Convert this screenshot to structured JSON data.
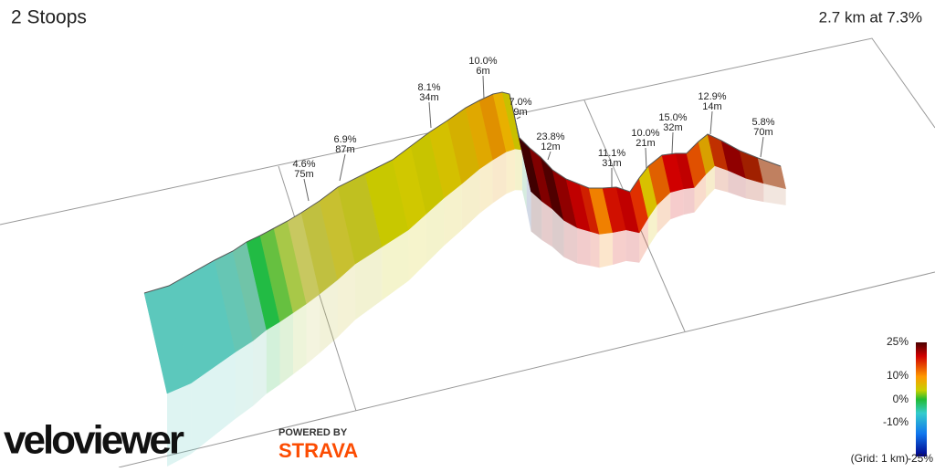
{
  "header": {
    "title": "2 Stoops",
    "summary": "2.7 km at 7.3%"
  },
  "annotations": [
    {
      "grade": "4.6%",
      "distance": "75m"
    },
    {
      "grade": "6.9%",
      "distance": "87m"
    },
    {
      "grade": "8.1%",
      "distance": "34m"
    },
    {
      "grade": "10.0%",
      "distance": "6m"
    },
    {
      "grade": "7.0%",
      "distance": "9m"
    },
    {
      "grade": "23.8%",
      "distance": "12m"
    },
    {
      "grade": "11.1%",
      "distance": "31m"
    },
    {
      "grade": "10.0%",
      "distance": "21m"
    },
    {
      "grade": "15.0%",
      "distance": "32m"
    },
    {
      "grade": "12.9%",
      "distance": "14m"
    },
    {
      "grade": "5.8%",
      "distance": "70m"
    }
  ],
  "legend": {
    "labels": [
      "25%",
      "10%",
      "0%",
      "-10%",
      "-25%"
    ],
    "grid_note": "(Grid: 1 km)"
  },
  "branding": {
    "logo": "veloviewer",
    "powered_by": "POWERED BY",
    "partner": "STRAVA"
  }
}
